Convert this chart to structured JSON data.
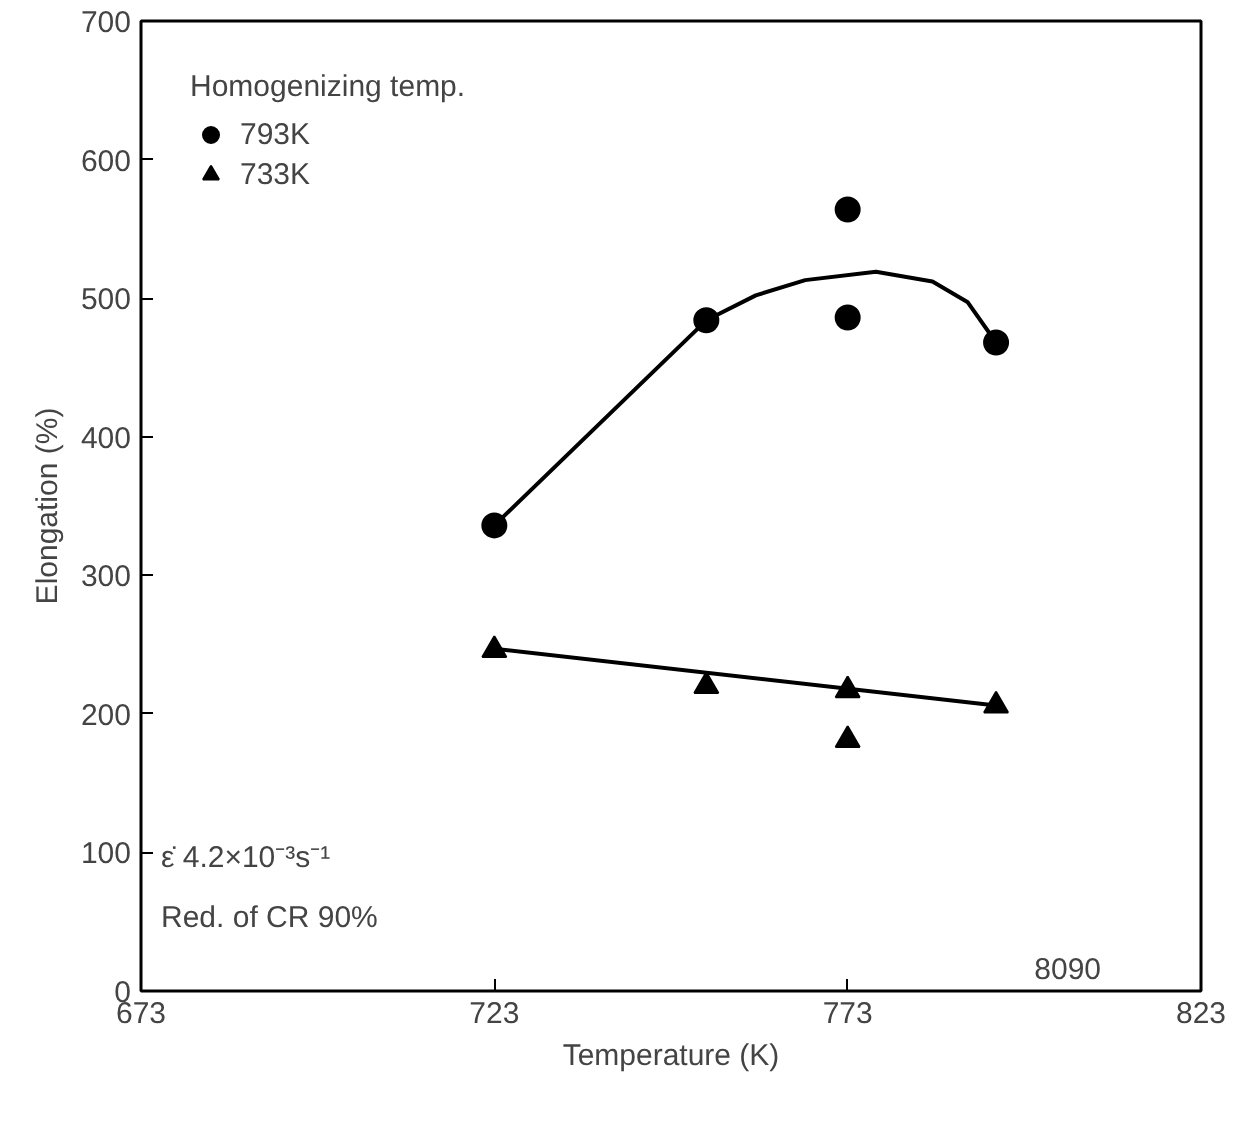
{
  "chart_data": {
    "type": "scatter",
    "xlabel": "Temperature (K)",
    "ylabel": "Elongation (%)",
    "legend_title": "Homogenizing temp.",
    "legend": "top left",
    "grid": false,
    "xlim": [
      673,
      823
    ],
    "xticks": [
      673,
      723,
      773,
      823
    ],
    "ylim": [
      0,
      700
    ],
    "yticks": [
      0,
      100,
      200,
      300,
      400,
      500,
      600,
      700
    ],
    "series": [
      {
        "name": "793K",
        "color": "#000000",
        "marker": "circle",
        "x": [
          723,
          753,
          773,
          773,
          794
        ],
        "values": [
          336,
          484,
          564,
          486,
          468
        ]
      },
      {
        "name": "733K",
        "color": "#000000",
        "marker": "triangle",
        "x": [
          723,
          753,
          773,
          773,
          794
        ],
        "values": [
          246,
          220,
          217,
          181,
          206
        ]
      },
      {
        "type": "line",
        "color": "#000000",
        "marker": "none",
        "x": [
          723,
          753,
          760,
          767,
          777,
          785,
          790,
          794
        ],
        "values": [
          336,
          484,
          502,
          513,
          519,
          512,
          497,
          468
        ]
      },
      {
        "type": "line",
        "color": "#000000",
        "marker": "none",
        "x": [
          723,
          794
        ],
        "values": [
          247,
          206
        ]
      }
    ],
    "annotations": [
      "ε̇ 4.2×10⁻³s⁻¹",
      "Red. of CR 90%",
      "8090"
    ]
  }
}
